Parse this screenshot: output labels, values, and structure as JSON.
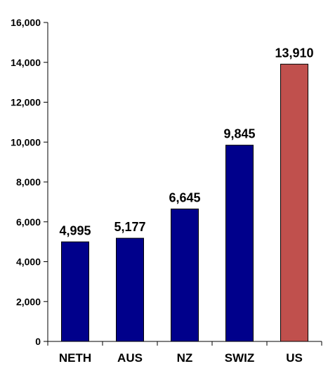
{
  "chart_data": {
    "type": "bar",
    "title": "",
    "xlabel": "",
    "ylabel": "",
    "categories": [
      "NETH",
      "AUS",
      "NZ",
      "SWIZ",
      "US"
    ],
    "values": [
      4995,
      5177,
      6645,
      9845,
      13910
    ],
    "data_labels": [
      "4,995",
      "5,177",
      "6,645",
      "9,845",
      "13,910"
    ],
    "bar_colors": [
      "#00008b",
      "#00008b",
      "#00008b",
      "#00008b",
      "#c0504d"
    ],
    "ylim": [
      0,
      16000
    ],
    "yticks": [
      0,
      2000,
      4000,
      6000,
      8000,
      10000,
      12000,
      14000,
      16000
    ],
    "ytick_labels": [
      "0",
      "2,000",
      "4,000",
      "6,000",
      "8,000",
      "10,000",
      "12,000",
      "14,000",
      "16,000"
    ],
    "grid": false,
    "legend": "none"
  }
}
